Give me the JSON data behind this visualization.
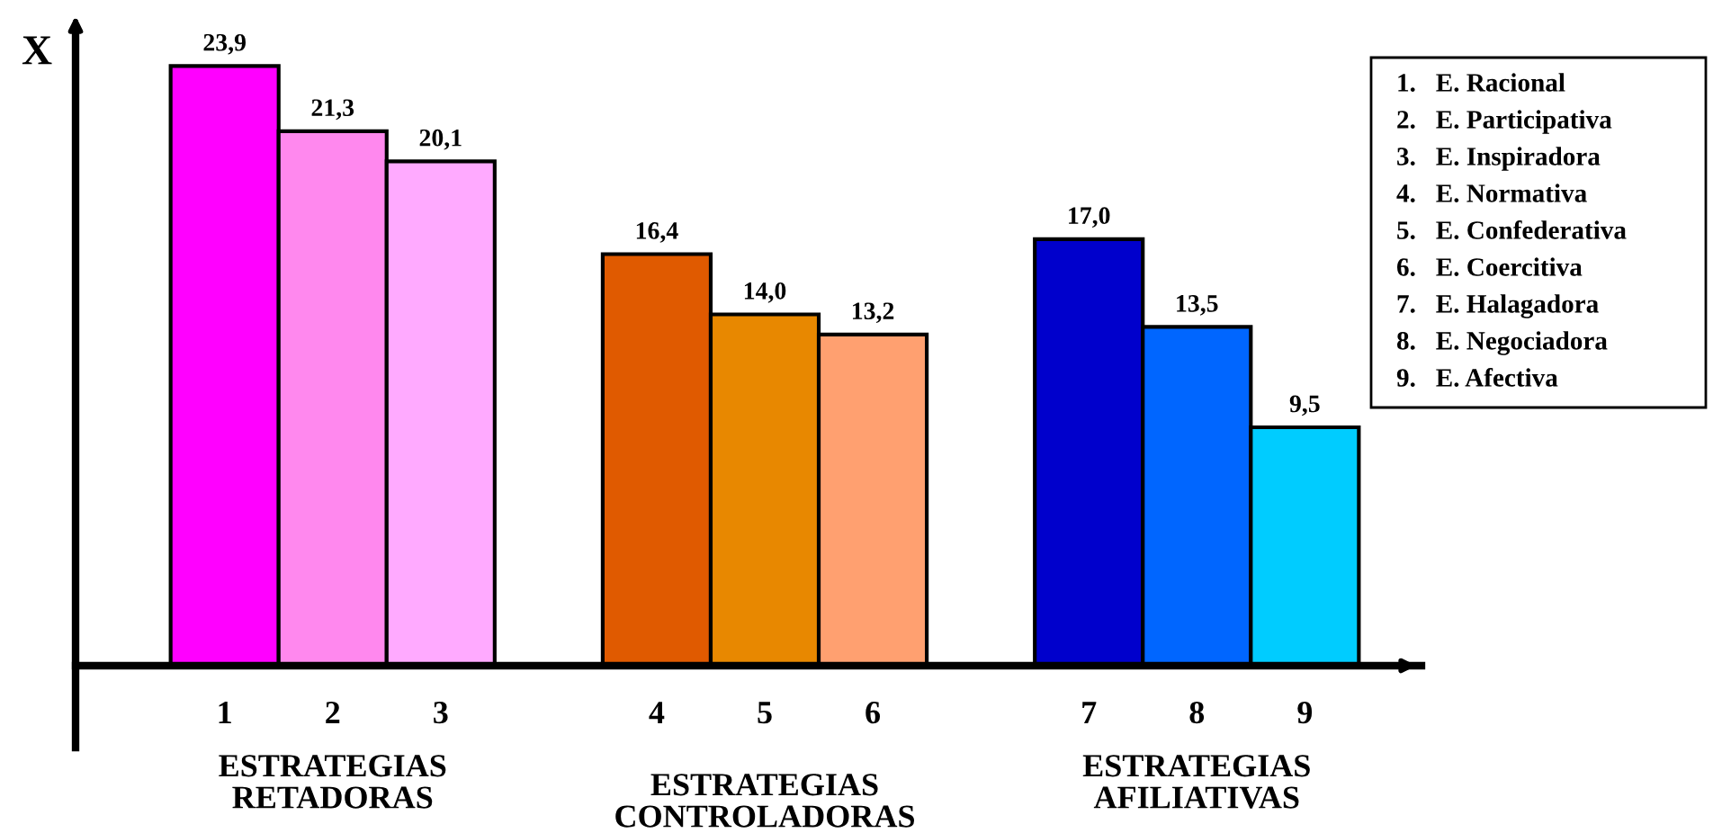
{
  "chart_data": {
    "type": "bar",
    "ylabel": "X",
    "categories": [
      "1",
      "2",
      "3",
      null,
      "4",
      "5",
      "6",
      null,
      "7",
      "8",
      "9"
    ],
    "values": [
      23.9,
      21.3,
      20.1,
      null,
      16.4,
      14.0,
      13.2,
      null,
      17.0,
      13.5,
      9.5
    ],
    "value_labels": [
      "23,9",
      "21,3",
      "20,1",
      null,
      "16,4",
      "14,0",
      "13,2",
      null,
      "17,0",
      "13,5",
      "9,5"
    ],
    "colors": [
      "#ff00ff",
      "#ff88ee",
      "#ffaaff",
      null,
      "#e05a00",
      "#e88800",
      "#ffa070",
      null,
      "#0000cc",
      "#0066ff",
      "#00ccff"
    ],
    "annotations": [
      "ESTRATEGIAS\nRETADORAS",
      "ESTRATEGIAS\nCONTROLADORAS",
      "ESTRATEGIAS\nAFILIATIVAS",
      "1.   E. Racional",
      "2.   E. Participativa",
      "3.   E. Inspiradora",
      "4.   E. Normativa",
      "5.   E. Confederativa",
      "6.   E. Coercitiva",
      "7.   E. Halagadora",
      "8.   E. Negociadora",
      "9.   E. Afectiva"
    ],
    "grid": false,
    "legend": false
  }
}
